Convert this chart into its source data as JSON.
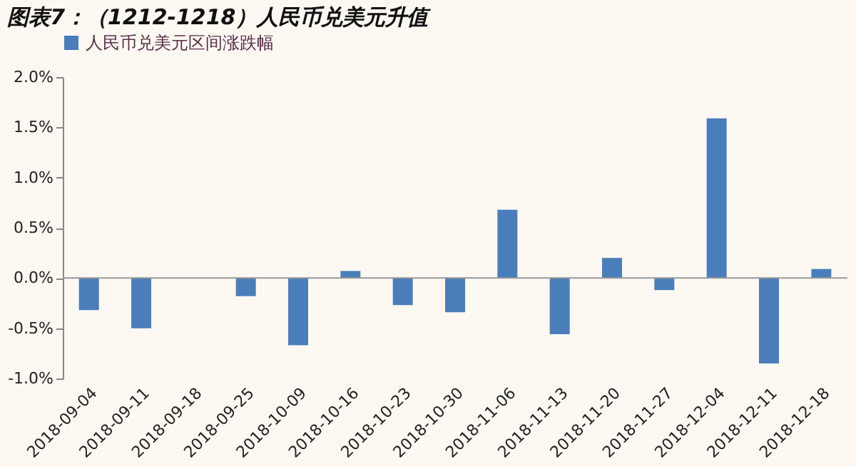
{
  "chart_data": {
    "type": "bar",
    "title": "图表7：（1212-1218）人民币兑美元升值",
    "categories": [
      "2018-09-04",
      "2018-09-11",
      "2018-09-18",
      "2018-09-25",
      "2018-10-09",
      "2018-10-16",
      "2018-10-23",
      "2018-10-30",
      "2018-11-06",
      "2018-11-13",
      "2018-11-20",
      "2018-11-27",
      "2018-12-04",
      "2018-12-11",
      "2018-12-18"
    ],
    "series": [
      {
        "name": "人民币兑美元区间涨跌幅",
        "color": "#4a7ebb",
        "values": [
          -0.32,
          -0.5,
          0,
          -0.18,
          -0.67,
          0.07,
          -0.27,
          -0.34,
          0.68,
          -0.56,
          0.2,
          -0.12,
          1.59,
          -0.85,
          0.09
        ]
      }
    ],
    "ylim": [
      -1.0,
      2.0
    ],
    "yticks": [
      {
        "value": -1.0,
        "label": "-1.0%"
      },
      {
        "value": -0.5,
        "label": "-0.5%"
      },
      {
        "value": 0,
        "label": "0.0%"
      },
      {
        "value": 0.5,
        "label": "0.5%"
      },
      {
        "value": 1.0,
        "label": "1.0%"
      },
      {
        "value": 1.5,
        "label": "1.5%"
      },
      {
        "value": 2.0,
        "label": "2.0%"
      }
    ],
    "ref_lines": [
      {
        "axis": "y",
        "value": 0,
        "color": "#999999"
      }
    ],
    "legend": "top",
    "grid": false
  }
}
